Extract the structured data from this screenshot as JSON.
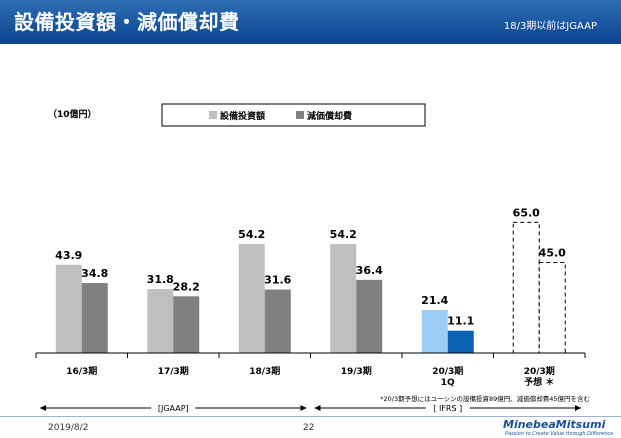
{
  "header": {
    "title": "設備投資額・減価償却費",
    "note": "18/3期以前はJGAAP"
  },
  "footer": {
    "date": "2019/8/2",
    "page": "22",
    "logo_name": "MinebeaMitsumi",
    "logo_tagline": "Passion to Create Value through Difference"
  },
  "chart_data": {
    "type": "bar",
    "unit_label": "（10億円）",
    "categories": [
      [
        "16/3期"
      ],
      [
        "17/3期"
      ],
      [
        "18/3期"
      ],
      [
        "19/3期"
      ],
      [
        "20/3期",
        "1Q"
      ],
      [
        "20/3期",
        "予想 ＊"
      ]
    ],
    "series": [
      {
        "name": "設備投資額",
        "color": "#bfbfbf",
        "values": [
          43.9,
          31.8,
          54.2,
          54.2,
          21.4,
          65.0
        ],
        "labels": [
          "43.9",
          "31.8",
          "54.2",
          "54.2",
          "21.4",
          "65.0"
        ],
        "highlight_colors": [
          null,
          null,
          null,
          null,
          "#9ccdf5",
          null
        ]
      },
      {
        "name": "減価償却費",
        "color": "#808080",
        "values": [
          34.8,
          28.2,
          31.6,
          36.4,
          11.1,
          45.0
        ],
        "labels": [
          "34.8",
          "28.2",
          "31.6",
          "36.4",
          "11.1",
          "45.0"
        ],
        "highlight_colors": [
          null,
          null,
          null,
          null,
          "#0a62b4",
          null
        ]
      }
    ],
    "forecast_category_index": 5,
    "legend_position": "top-center",
    "ylim": [
      0,
      70
    ],
    "grid": false,
    "periods": [
      {
        "label": "[JGAAP]",
        "from_category": 0,
        "to_category": 2
      },
      {
        "label": "[ IFRS ]",
        "from_category": 3,
        "to_category": 5
      }
    ],
    "footnote": "*20/3期予想にはユーシンの設備投資89億円、減価償却費45億円を含む"
  }
}
